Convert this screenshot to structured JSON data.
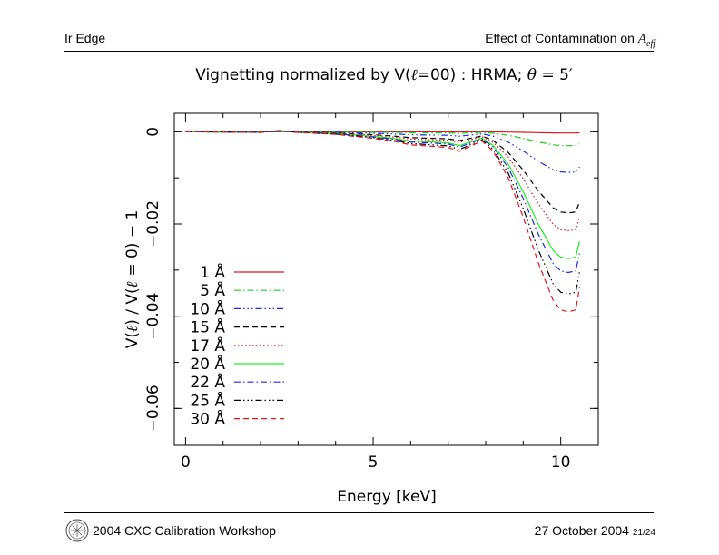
{
  "header": {
    "left": "Ir Edge",
    "right_prefix": "Effect of Contamination on ",
    "right_symbol": "A",
    "right_sub": "eff"
  },
  "footer": {
    "left": "2004 CXC Calibration Workshop",
    "date": "27 October 2004",
    "page": "21/24"
  },
  "icons": {
    "logo": "cxc-logo-icon"
  },
  "chart_data": {
    "type": "line",
    "title_parts": [
      "Vignetting normalized by V(",
      "ℓ",
      "=00) : HRMA; ",
      "θ",
      " = 5′"
    ],
    "xlabel": "Energy [keV]",
    "ylabel_parts": [
      "V(",
      "ℓ",
      ")  /  V(",
      "ℓ",
      " = 0)  − 1"
    ],
    "xlim": [
      -0.3,
      11.0
    ],
    "ylim": [
      -0.068,
      0.004
    ],
    "xticks": [
      0,
      5,
      10
    ],
    "xtick_labels": [
      "0",
      "5",
      "10"
    ],
    "yticks": [
      0,
      -0.02,
      -0.04,
      -0.06
    ],
    "ytick_labels": [
      "0",
      "−0.02",
      "−0.04",
      "−0.06"
    ],
    "base_shape": {
      "x": [
        0.0,
        2.0,
        2.5,
        3.0,
        4.0,
        5.0,
        5.5,
        6.0,
        6.5,
        7.0,
        7.3,
        7.6,
        7.9,
        8.2,
        8.6,
        9.0,
        9.4,
        9.8,
        10.0,
        10.2,
        10.4,
        10.5
      ],
      "y": [
        0.0,
        -0.0001,
        0.0002,
        -0.0001,
        -0.0004,
        -0.001,
        -0.0014,
        -0.002,
        -0.0022,
        -0.0024,
        -0.003,
        -0.0022,
        -0.0014,
        -0.003,
        -0.007,
        -0.013,
        -0.02,
        -0.0258,
        -0.0272,
        -0.0275,
        -0.0272,
        -0.0238
      ]
    },
    "series": [
      {
        "name": "1 Å",
        "factor": 0.01,
        "color": "#e8141c",
        "dash": ""
      },
      {
        "name": "5 Å",
        "factor": 0.11,
        "color": "#22cc22",
        "dash": "7,3,1.5,3"
      },
      {
        "name": "10 Å",
        "factor": 0.32,
        "color": "#1c2be0",
        "dash": "7,3,1.5,3,1.5,3,1.5,3"
      },
      {
        "name": "15 Å",
        "factor": 0.64,
        "color": "#000000",
        "dash": "6,4"
      },
      {
        "name": "17 Å",
        "factor": 0.78,
        "color": "#e8141c",
        "dash": "1.5,2.5"
      },
      {
        "name": "20 Å",
        "factor": 1.0,
        "color": "#22ee22",
        "dash": ""
      },
      {
        "name": "22 Å",
        "factor": 1.11,
        "color": "#1c2be0",
        "dash": "7,3,1.5,3"
      },
      {
        "name": "25 Å",
        "factor": 1.28,
        "color": "#000000",
        "dash": "7,3,1.5,3,1.5,3,1.5,3"
      },
      {
        "name": "30 Å",
        "factor": 1.42,
        "color": "#e8141c",
        "dash": "6,4"
      }
    ],
    "legend_position": "lower-left"
  }
}
